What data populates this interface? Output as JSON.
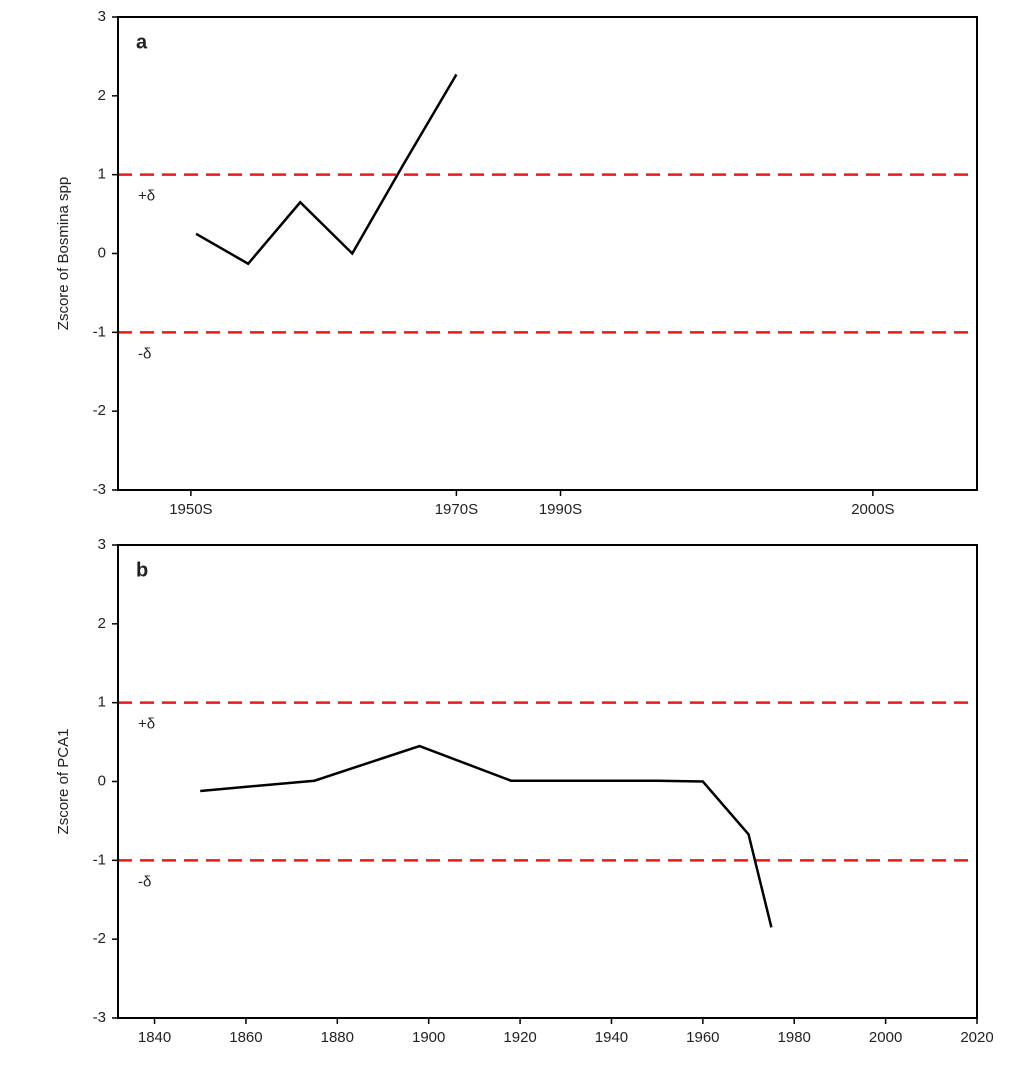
{
  "chart_data": [
    {
      "type": "line",
      "panel_label": "a",
      "ylabel": "Zscore of Bosmina spp",
      "x": [
        1.5,
        2.5,
        3.5,
        4.5,
        5.5,
        6.5
      ],
      "series": [
        {
          "name": "Bosmina spp",
          "color": "#000000",
          "values": [
            0.25,
            -0.13,
            0.65,
            0,
            1.15,
            2.27
          ]
        }
      ],
      "xlim": [
        0,
        16.5
      ],
      "xticks": [
        {
          "value": 1.4,
          "label": "1950S"
        },
        {
          "value": 6.5,
          "label": "1970S"
        },
        {
          "value": 8.5,
          "label": "1990S"
        },
        {
          "value": 14.5,
          "label": "2000S"
        }
      ],
      "ylim": [
        -3,
        3
      ],
      "yticks": [
        -3,
        -2,
        -1,
        0,
        1,
        2,
        3
      ],
      "thresholds": [
        {
          "value": 1,
          "label": "+δ"
        },
        {
          "value": -1,
          "label": "-δ"
        }
      ],
      "threshold_color": "#e41a1c"
    },
    {
      "type": "line",
      "panel_label": "b",
      "ylabel": "Zscore of PCA1",
      "x": [
        1850,
        1875,
        1898,
        1918,
        1950,
        1960,
        1970,
        1975
      ],
      "series": [
        {
          "name": "PCA1",
          "color": "#000000",
          "values": [
            -0.12,
            0.01,
            0.45,
            0.01,
            0.01,
            0,
            -0.67,
            -1.85
          ]
        }
      ],
      "xlim": [
        1832,
        2020
      ],
      "xticks": [
        1840,
        1860,
        1880,
        1900,
        1920,
        1940,
        1960,
        1980,
        2000,
        2020
      ],
      "ylim": [
        -3,
        3
      ],
      "yticks": [
        -3,
        -2,
        -1,
        0,
        1,
        2,
        3
      ],
      "thresholds": [
        {
          "value": 1,
          "label": "+δ"
        },
        {
          "value": -1,
          "label": "-δ"
        }
      ],
      "threshold_color": "#e41a1c"
    }
  ]
}
